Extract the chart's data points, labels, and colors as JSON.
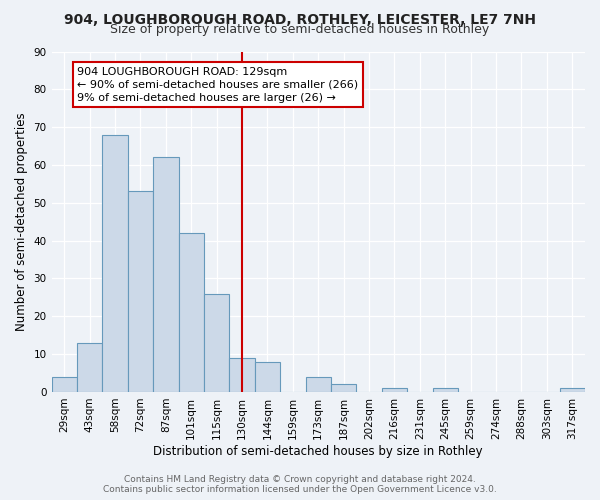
{
  "title": "904, LOUGHBOROUGH ROAD, ROTHLEY, LEICESTER, LE7 7NH",
  "subtitle": "Size of property relative to semi-detached houses in Rothley",
  "xlabel": "Distribution of semi-detached houses by size in Rothley",
  "ylabel": "Number of semi-detached properties",
  "categories": [
    "29sqm",
    "43sqm",
    "58sqm",
    "72sqm",
    "87sqm",
    "101sqm",
    "115sqm",
    "130sqm",
    "144sqm",
    "159sqm",
    "173sqm",
    "187sqm",
    "202sqm",
    "216sqm",
    "231sqm",
    "245sqm",
    "259sqm",
    "274sqm",
    "288sqm",
    "303sqm",
    "317sqm"
  ],
  "values": [
    4,
    13,
    68,
    53,
    62,
    42,
    26,
    9,
    8,
    0,
    4,
    2,
    0,
    1,
    0,
    1,
    0,
    0,
    0,
    0,
    1
  ],
  "bar_color": "#ccd9e8",
  "bar_edge_color": "#6699bb",
  "vline_index": 7,
  "annotation_title": "904 LOUGHBOROUGH ROAD: 129sqm",
  "annotation_line1": "← 90% of semi-detached houses are smaller (266)",
  "annotation_line2": "9% of semi-detached houses are larger (26) →",
  "annotation_box_color": "#ffffff",
  "annotation_border_color": "#cc0000",
  "vline_color": "#cc0000",
  "footer_line1": "Contains HM Land Registry data © Crown copyright and database right 2024.",
  "footer_line2": "Contains public sector information licensed under the Open Government Licence v3.0.",
  "ylim": [
    0,
    90
  ],
  "yticks": [
    0,
    10,
    20,
    30,
    40,
    50,
    60,
    70,
    80,
    90
  ],
  "title_fontsize": 10,
  "subtitle_fontsize": 9,
  "axis_label_fontsize": 8.5,
  "tick_fontsize": 7.5,
  "annotation_fontsize": 8,
  "footer_fontsize": 6.5,
  "background_color": "#eef2f7"
}
